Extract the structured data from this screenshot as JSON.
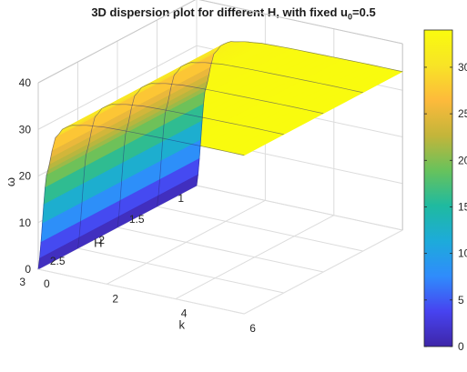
{
  "chart_data": {
    "type": "surface",
    "title": {
      "main": "3D dispersion plot for different H, with fixed u",
      "sub": "0",
      "tail": "=0.5"
    },
    "xlabel": "k",
    "ylabel": "H",
    "zlabel": "ω",
    "xlim": [
      0,
      6
    ],
    "ylim": [
      1,
      3
    ],
    "zlim": [
      0,
      40
    ],
    "xticks": [
      "0",
      "2",
      "4",
      "6"
    ],
    "yticks": [
      "1",
      "1.5",
      "2",
      "2.5",
      "3"
    ],
    "zticks": [
      "0",
      "10",
      "20",
      "30",
      "40"
    ],
    "colorbar": {
      "range": [
        0,
        34
      ],
      "ticks": [
        "0",
        "5",
        "10",
        "15",
        "20",
        "25",
        "30"
      ],
      "colormap": [
        "#3e26a8",
        "#4743f0",
        "#2f8cfc",
        "#1dabda",
        "#1fbaa0",
        "#67c25c",
        "#c3b53a",
        "#fdba3b",
        "#f8e426",
        "#f9fb0e"
      ]
    },
    "surface": {
      "description_free": true,
      "k_samples": [
        0,
        0.25,
        0.5,
        0.75,
        1.0,
        1.5,
        2.0,
        3.0,
        4.0,
        5.0,
        6.0
      ],
      "omega_at_k": [
        0,
        21,
        29,
        31.5,
        32.5,
        33.2,
        33.6,
        33.8,
        33.9,
        34.0,
        34.0
      ],
      "H_dependence": "nearly none"
    },
    "grid": true
  }
}
